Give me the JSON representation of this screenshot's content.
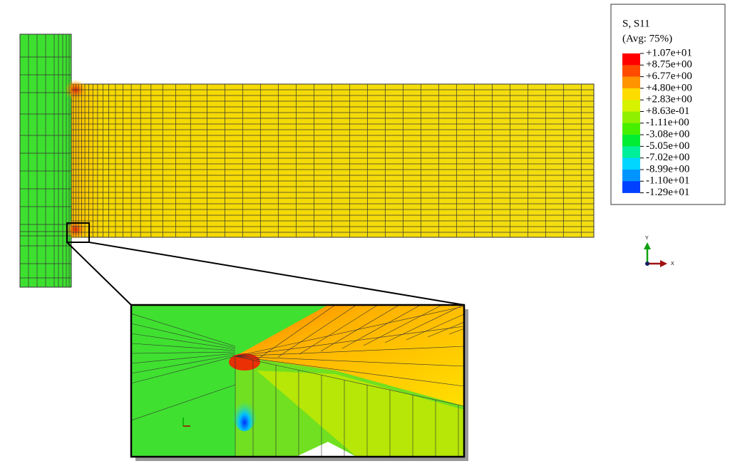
{
  "legend": {
    "title": "S, S11",
    "subtitle": "(Avg: 75%)",
    "labels": [
      "+1.07e+01",
      "+8.75e+00",
      "+6.77e+00",
      "+4.80e+00",
      "+2.83e+00",
      "+8.63e-01",
      "-1.11e+00",
      "-3.08e+00",
      "-5.05e+00",
      "-7.02e+00",
      "-8.99e+00",
      "-1.10e+01",
      "-1.29e+01"
    ]
  },
  "triad": {
    "y": "Y",
    "x": "X"
  }
}
